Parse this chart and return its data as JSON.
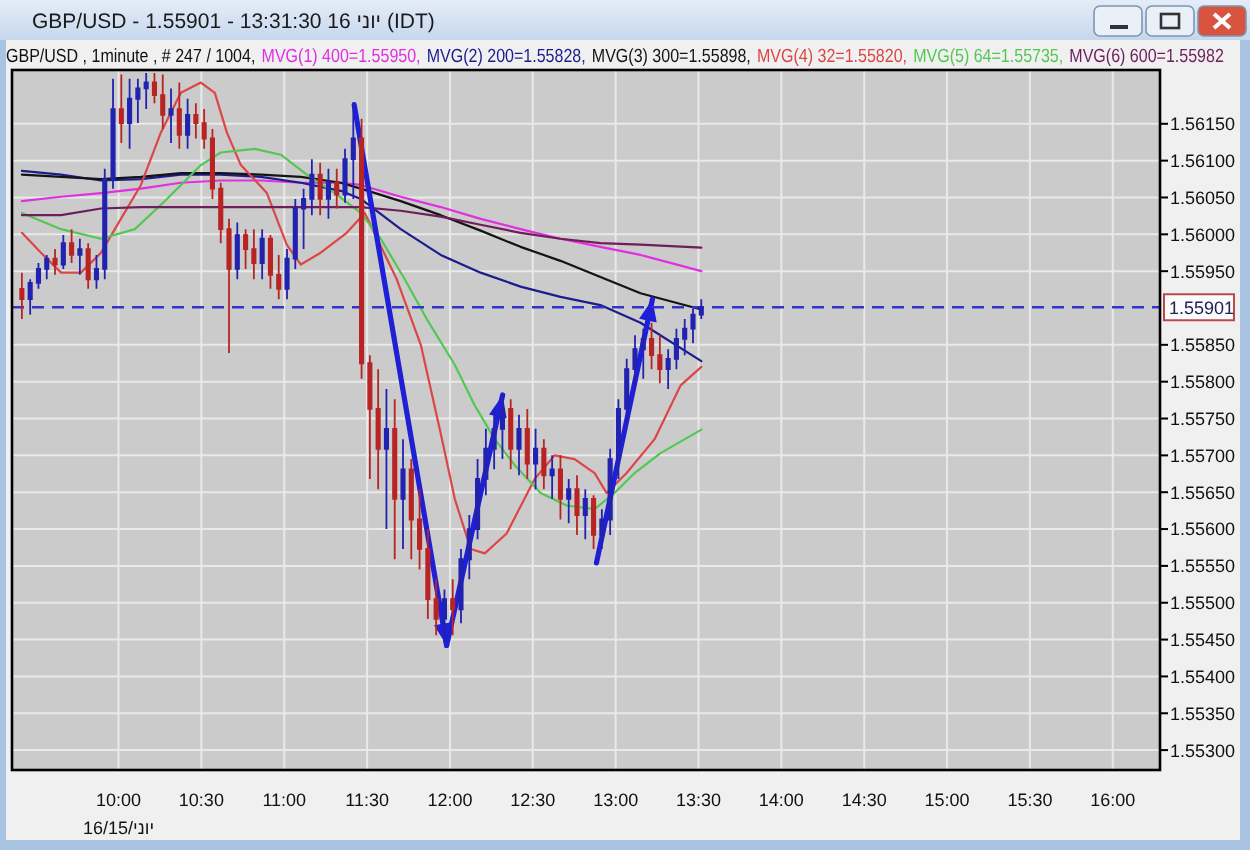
{
  "chart_data": {
    "type": "candlestick",
    "title": "GBP/USD - 1.55901 - 13:31:30 16 יוני (IDT)",
    "subtitle": "GBP/USD , 1minute , # 247 / 1004,",
    "annotations": [
      "יוני/16/15"
    ],
    "x": [
      9.4167,
      9.4667,
      9.5167,
      9.5667,
      9.6167,
      9.6667,
      9.7167,
      9.7667,
      9.8167,
      9.8667,
      9.9167,
      9.9667,
      10.0167,
      10.0667,
      10.1167,
      10.1667,
      10.2167,
      10.2667,
      10.3167,
      10.3667,
      10.4167,
      10.4667,
      10.5167,
      10.5667,
      10.6167,
      10.6667,
      10.7167,
      10.7667,
      10.8167,
      10.8667,
      10.9167,
      10.9667,
      11.0167,
      11.0667,
      11.1167,
      11.1667,
      11.2167,
      11.2667,
      11.3167,
      11.3667,
      11.4167,
      11.4667,
      11.5167,
      11.5667,
      11.6167,
      11.6667,
      11.7167,
      11.7667,
      11.8167,
      11.8667,
      11.9167,
      11.9667,
      12.0167,
      12.0667,
      12.1167,
      12.1667,
      12.2167,
      12.2667,
      12.3167,
      12.3667,
      12.4167,
      12.4667,
      12.5167,
      12.5667,
      12.6167,
      12.6667,
      12.7167,
      12.7667,
      12.8167,
      12.8667,
      12.9167,
      12.9667,
      13.0167,
      13.0667,
      13.1167,
      13.1667,
      13.2167,
      13.2667,
      13.3167,
      13.3667,
      13.4167,
      13.4667,
      13.5167
    ],
    "ohlc": [
      [
        1.55926,
        1.55948,
        1.55885,
        1.55912
      ],
      [
        1.55912,
        1.55939,
        1.55891,
        1.55934
      ],
      [
        1.55934,
        1.55961,
        1.55926,
        1.55953
      ],
      [
        1.55953,
        1.55972,
        1.55939,
        1.55967
      ],
      [
        1.55967,
        1.5598,
        1.55945,
        1.55959
      ],
      [
        1.55959,
        1.55999,
        1.55953,
        1.55988
      ],
      [
        1.55988,
        1.56007,
        1.55961,
        1.55972
      ],
      [
        1.55972,
        1.55994,
        1.55945,
        1.5598
      ],
      [
        1.5598,
        1.55988,
        1.55926,
        1.55939
      ],
      [
        1.55939,
        1.55972,
        1.55926,
        1.55953
      ],
      [
        1.55953,
        1.56089,
        1.55939,
        1.56075
      ],
      [
        1.56075,
        1.56211,
        1.56062,
        1.5617
      ],
      [
        1.5617,
        1.56217,
        1.56124,
        1.56151
      ],
      [
        1.56151,
        1.56211,
        1.56116,
        1.56184
      ],
      [
        1.56184,
        1.56211,
        1.56151,
        1.56198
      ],
      [
        1.56198,
        1.56219,
        1.5617,
        1.56206
      ],
      [
        1.56206,
        1.56219,
        1.56178,
        1.56189
      ],
      [
        1.56189,
        1.56217,
        1.56143,
        1.56162
      ],
      [
        1.56162,
        1.56198,
        1.56124,
        1.5617
      ],
      [
        1.5617,
        1.56206,
        1.56116,
        1.56135
      ],
      [
        1.56135,
        1.56184,
        1.56116,
        1.56162
      ],
      [
        1.56162,
        1.56178,
        1.5613,
        1.56151
      ],
      [
        1.56151,
        1.5617,
        1.56116,
        1.5613
      ],
      [
        1.5613,
        1.56143,
        1.56048,
        1.56062
      ],
      [
        1.56062,
        1.5607,
        1.55988,
        1.56007
      ],
      [
        1.56007,
        1.56021,
        1.55839,
        1.55953
      ],
      [
        1.55953,
        1.56016,
        1.55939,
        1.55999
      ],
      [
        1.55999,
        1.56007,
        1.55953,
        1.5598
      ],
      [
        1.5598,
        1.56007,
        1.55939,
        1.55961
      ],
      [
        1.55961,
        1.56007,
        1.55939,
        1.55994
      ],
      [
        1.55994,
        1.55999,
        1.55926,
        1.55945
      ],
      [
        1.55945,
        1.55972,
        1.55912,
        1.55926
      ],
      [
        1.55926,
        1.5598,
        1.55912,
        1.55967
      ],
      [
        1.55967,
        1.56048,
        1.55953,
        1.56035
      ],
      [
        1.56035,
        1.56062,
        1.5598,
        1.56048
      ],
      [
        1.56048,
        1.56102,
        1.56026,
        1.56081
      ],
      [
        1.56081,
        1.56097,
        1.56026,
        1.56048
      ],
      [
        1.56048,
        1.56089,
        1.56021,
        1.5607
      ],
      [
        1.5607,
        1.56089,
        1.56035,
        1.56054
      ],
      [
        1.56054,
        1.56116,
        1.56043,
        1.56102
      ],
      [
        1.56102,
        1.56176,
        1.56048,
        1.5613
      ],
      [
        1.5613,
        1.56157,
        1.55804,
        1.55825
      ],
      [
        1.55825,
        1.55836,
        1.55668,
        1.55763
      ],
      [
        1.55763,
        1.55817,
        1.55654,
        1.55709
      ],
      [
        1.55709,
        1.5579,
        1.556,
        1.55736
      ],
      [
        1.55736,
        1.55776,
        1.55559,
        1.55641
      ],
      [
        1.55641,
        1.55722,
        1.55573,
        1.55681
      ],
      [
        1.55681,
        1.55695,
        1.55559,
        1.55613
      ],
      [
        1.55613,
        1.55654,
        1.55545,
        1.55573
      ],
      [
        1.55573,
        1.556,
        1.55478,
        1.55505
      ],
      [
        1.55505,
        1.55532,
        1.55456,
        1.55478
      ],
      [
        1.55478,
        1.55518,
        1.55445,
        1.55505
      ],
      [
        1.55505,
        1.55532,
        1.55456,
        1.55491
      ],
      [
        1.55491,
        1.55573,
        1.55472,
        1.55559
      ],
      [
        1.55559,
        1.55619,
        1.55532,
        1.556
      ],
      [
        1.556,
        1.55695,
        1.55586,
        1.55668
      ],
      [
        1.55668,
        1.55736,
        1.55646,
        1.55709
      ],
      [
        1.55709,
        1.55763,
        1.55681,
        1.55736
      ],
      [
        1.55736,
        1.55782,
        1.55695,
        1.55763
      ],
      [
        1.55763,
        1.55776,
        1.55681,
        1.55709
      ],
      [
        1.55709,
        1.55755,
        1.55673,
        1.55736
      ],
      [
        1.55736,
        1.55763,
        1.55668,
        1.55689
      ],
      [
        1.55689,
        1.55736,
        1.55654,
        1.55709
      ],
      [
        1.55709,
        1.55722,
        1.55654,
        1.55673
      ],
      [
        1.55673,
        1.557,
        1.55641,
        1.55681
      ],
      [
        1.55681,
        1.557,
        1.55613,
        1.55641
      ],
      [
        1.55641,
        1.55668,
        1.55608,
        1.55654
      ],
      [
        1.55654,
        1.55673,
        1.55592,
        1.55619
      ],
      [
        1.55619,
        1.55654,
        1.55586,
        1.55641
      ],
      [
        1.55641,
        1.55646,
        1.55573,
        1.55592
      ],
      [
        1.55592,
        1.55627,
        1.55573,
        1.55613
      ],
      [
        1.55613,
        1.55709,
        1.55592,
        1.55695
      ],
      [
        1.55695,
        1.55776,
        1.55668,
        1.55763
      ],
      [
        1.55763,
        1.55831,
        1.55744,
        1.55817
      ],
      [
        1.55817,
        1.55863,
        1.5579,
        1.55844
      ],
      [
        1.55844,
        1.55872,
        1.55804,
        1.55858
      ],
      [
        1.55858,
        1.5588,
        1.55817,
        1.55836
      ],
      [
        1.55836,
        1.55863,
        1.55798,
        1.55817
      ],
      [
        1.55817,
        1.55844,
        1.5579,
        1.55831
      ],
      [
        1.55831,
        1.55872,
        1.55817,
        1.55858
      ],
      [
        1.55858,
        1.55885,
        1.55836,
        1.55872
      ],
      [
        1.55872,
        1.55899,
        1.55852,
        1.55891
      ],
      [
        1.55891,
        1.55912,
        1.55885,
        1.55901
      ]
    ],
    "colors": [
      "#b82424",
      "#2222b0",
      "#2222b0",
      "#2222b0",
      "#b82424",
      "#2222b0",
      "#b82424",
      "#2222b0",
      "#b82424",
      "#2222b0",
      "#2222b0",
      "#2222b0",
      "#b82424",
      "#2222b0",
      "#2222b0",
      "#2222b0",
      "#b82424",
      "#b82424",
      "#2222b0",
      "#b82424",
      "#2222b0",
      "#b82424",
      "#b82424",
      "#b82424",
      "#b82424",
      "#b82424",
      "#2222b0",
      "#b82424",
      "#b82424",
      "#2222b0",
      "#b82424",
      "#b82424",
      "#2222b0",
      "#2222b0",
      "#2222b0",
      "#2222b0",
      "#b82424",
      "#2222b0",
      "#b82424",
      "#2222b0",
      "#2222b0",
      "#b82424",
      "#b82424",
      "#b82424",
      "#2222b0",
      "#b82424",
      "#2222b0",
      "#b82424",
      "#b82424",
      "#b82424",
      "#b82424",
      "#2222b0",
      "#b82424",
      "#2222b0",
      "#2222b0",
      "#2222b0",
      "#2222b0",
      "#2222b0",
      "#2222b0",
      "#b82424",
      "#2222b0",
      "#b82424",
      "#2222b0",
      "#b82424",
      "#2222b0",
      "#b82424",
      "#2222b0",
      "#b82424",
      "#2222b0",
      "#b82424",
      "#2222b0",
      "#2222b0",
      "#2222b0",
      "#2222b0",
      "#2222b0",
      "#2222b0",
      "#b82424",
      "#b82424",
      "#2222b0",
      "#2222b0",
      "#2222b0",
      "#2222b0",
      "#2222b0"
    ],
    "series": [
      {
        "name": "MVG(1) 400=1.55950,",
        "type": "line",
        "color": "#e030e0",
        "x": [
          9.417,
          9.653,
          9.894,
          10.135,
          10.376,
          10.617,
          10.859,
          11.1,
          11.341,
          11.462,
          11.703,
          11.944,
          12.185,
          12.426,
          12.667,
          12.908,
          13.15,
          13.517
        ],
        "values": [
          1.56045,
          1.56051,
          1.56056,
          1.56062,
          1.5607,
          1.56073,
          1.56073,
          1.5607,
          1.5607,
          1.56067,
          1.56051,
          1.56037,
          1.56021,
          1.56007,
          1.55994,
          1.55983,
          1.55972,
          1.5595
        ]
      },
      {
        "name": "MVG(2) 200=1.55828,",
        "type": "line",
        "color": "#1c1c8c",
        "x": [
          9.417,
          9.653,
          9.894,
          10.135,
          10.376,
          10.617,
          10.859,
          11.1,
          11.341,
          11.462,
          11.703,
          11.944,
          12.185,
          12.426,
          12.667,
          12.908,
          13.15,
          13.517
        ],
        "values": [
          1.56086,
          1.56081,
          1.56073,
          1.56075,
          1.56081,
          1.56081,
          1.56078,
          1.5607,
          1.56059,
          1.56048,
          1.56007,
          1.55972,
          1.55948,
          1.55929,
          1.55915,
          1.55904,
          1.5588,
          1.55828
        ]
      },
      {
        "name": "MVG(3) 300=1.55898,",
        "type": "line",
        "color": "#141414",
        "x": [
          9.417,
          9.653,
          9.894,
          10.135,
          10.376,
          10.617,
          10.859,
          11.1,
          11.341,
          11.462,
          11.703,
          11.944,
          12.185,
          12.426,
          12.667,
          12.908,
          13.15,
          13.517
        ],
        "values": [
          1.56081,
          1.56078,
          1.56075,
          1.56078,
          1.56083,
          1.56083,
          1.56081,
          1.56078,
          1.5607,
          1.56062,
          1.56045,
          1.56026,
          1.56005,
          1.55983,
          1.55964,
          1.55942,
          1.5592,
          1.55898
        ]
      },
      {
        "name": "MVG(4) 32=1.55820,",
        "type": "line",
        "color": "#dc4646",
        "x": [
          9.417,
          9.532,
          9.653,
          9.773,
          9.894,
          10.014,
          10.135,
          10.255,
          10.376,
          10.497,
          10.581,
          10.654,
          10.738,
          10.895,
          11.015,
          11.1,
          11.22,
          11.377,
          11.486,
          11.679,
          11.824,
          11.944,
          12.029,
          12.125,
          12.21,
          12.342,
          12.511,
          12.631,
          12.752,
          12.873,
          12.945,
          13.066,
          13.235,
          13.392,
          13.517
        ],
        "values": [
          1.56002,
          1.55975,
          1.55948,
          1.55948,
          1.55975,
          1.56021,
          1.56067,
          1.56138,
          1.56192,
          1.56206,
          1.56192,
          1.56138,
          1.56094,
          1.56056,
          1.55986,
          1.55959,
          1.55975,
          1.56002,
          1.56029,
          1.55939,
          1.5585,
          1.5573,
          1.55641,
          1.55573,
          1.55567,
          1.55594,
          1.55668,
          1.557,
          1.55695,
          1.55676,
          1.55649,
          1.55676,
          1.55722,
          1.55795,
          1.5582
        ]
      },
      {
        "name": "MVG(5) 64=1.55735,",
        "type": "line",
        "color": "#52c852",
        "x": [
          9.417,
          9.653,
          9.894,
          10.099,
          10.292,
          10.497,
          10.617,
          10.822,
          10.979,
          11.136,
          11.305,
          11.462,
          11.582,
          11.727,
          11.86,
          12.029,
          12.149,
          12.27,
          12.39,
          12.547,
          12.704,
          12.873,
          12.993,
          13.114,
          13.271,
          13.517
        ],
        "values": [
          1.56029,
          1.56007,
          1.55994,
          1.56007,
          1.56048,
          1.56094,
          1.56111,
          1.56116,
          1.56108,
          1.56081,
          1.56056,
          1.56029,
          1.55994,
          1.55939,
          1.55885,
          1.55823,
          1.55768,
          1.55722,
          1.55687,
          1.55649,
          1.55632,
          1.55627,
          1.55649,
          1.55676,
          1.55703,
          1.55735
        ]
      },
      {
        "name": "MVG(6) 600=1.55982",
        "type": "line",
        "color": "#6e1e5a",
        "x": [
          9.417,
          9.653,
          9.894,
          10.135,
          10.376,
          10.617,
          10.859,
          11.1,
          11.341,
          11.462,
          11.703,
          11.944,
          12.185,
          12.426,
          12.667,
          12.908,
          13.15,
          13.517
        ],
        "values": [
          1.56026,
          1.56026,
          1.56035,
          1.56037,
          1.56037,
          1.56037,
          1.56037,
          1.56037,
          1.56037,
          1.56037,
          1.56032,
          1.56024,
          1.56013,
          1.56002,
          1.55994,
          1.55988,
          1.55986,
          1.55982
        ]
      },
      {
        "type": "line",
        "color": "#1f1fd6",
        "x": [
          11.422,
          11.98
        ],
        "values": [
          1.56176,
          1.55442
        ]
      },
      {
        "type": "line",
        "color": "#1f1fd6",
        "x": [
          11.98,
          12.318
        ],
        "values": [
          1.55442,
          1.55782
        ]
      },
      {
        "type": "line",
        "color": "#1f1fd6",
        "x": [
          12.884,
          13.222
        ],
        "values": [
          1.55554,
          1.55912
        ]
      }
    ],
    "xlim": [
      9.357,
      16.285
    ],
    "xticks": [
      {
        "value": 10,
        "label": "10:00"
      },
      {
        "value": 10.5,
        "label": "10:30"
      },
      {
        "value": 11,
        "label": "11:00"
      },
      {
        "value": 11.5,
        "label": "11:30"
      },
      {
        "value": 12,
        "label": "12:00"
      },
      {
        "value": 12.5,
        "label": "12:30"
      },
      {
        "value": 13,
        "label": "13:00"
      },
      {
        "value": 13.5,
        "label": "13:30"
      },
      {
        "value": 14,
        "label": "14:00"
      },
      {
        "value": 14.5,
        "label": "14:30"
      },
      {
        "value": 15,
        "label": "15:00"
      },
      {
        "value": 15.5,
        "label": "15:30"
      },
      {
        "value": 16,
        "label": "16:00"
      }
    ],
    "ylim": [
      1.55273,
      1.56223
    ],
    "yticks": [
      {
        "value": 1.553,
        "label": "1.55300"
      },
      {
        "value": 1.5535,
        "label": "1.55350"
      },
      {
        "value": 1.554,
        "label": "1.55400"
      },
      {
        "value": 1.5545,
        "label": "1.55450"
      },
      {
        "value": 1.555,
        "label": "1.55500"
      },
      {
        "value": 1.5555,
        "label": "1.55550"
      },
      {
        "value": 1.556,
        "label": "1.55600"
      },
      {
        "value": 1.5565,
        "label": "1.55650"
      },
      {
        "value": 1.557,
        "label": "1.55700"
      },
      {
        "value": 1.5575,
        "label": "1.55750"
      },
      {
        "value": 1.558,
        "label": "1.55800"
      },
      {
        "value": 1.5585,
        "label": "1.55850"
      },
      {
        "value": 1.5595,
        "label": "1.55950"
      },
      {
        "value": 1.56,
        "label": "1.56000"
      },
      {
        "value": 1.5605,
        "label": "1.56050"
      },
      {
        "value": 1.561,
        "label": "1.56100"
      },
      {
        "value": 1.5615,
        "label": "1.56150"
      }
    ],
    "ref_lines": [
      {
        "axis": "y",
        "value": 1.55901,
        "label": "1.55901",
        "color": "#3434c8",
        "line_style": "dashed"
      }
    ],
    "grid": true,
    "legend": "top"
  }
}
